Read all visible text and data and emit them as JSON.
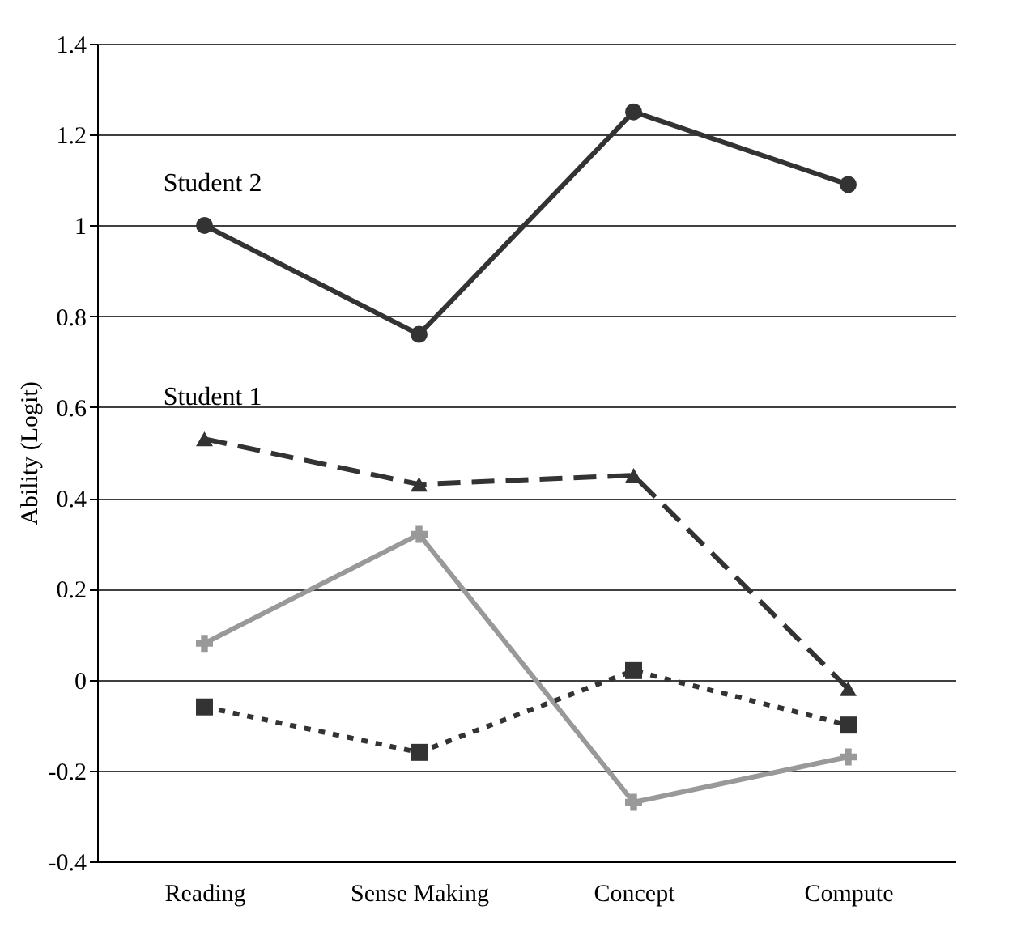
{
  "chart_data": {
    "type": "line",
    "ylabel": "Ability (Logit)",
    "categories": [
      "Reading",
      "Sense Making",
      "Concept",
      "Compute"
    ],
    "series": [
      {
        "name": "Student 2",
        "color": "#333333",
        "marker": "circle",
        "line_style": "solid",
        "values": [
          1.0,
          0.76,
          1.25,
          1.09
        ]
      },
      {
        "name": "Student 1",
        "color": "#333333",
        "marker": "triangle",
        "line_style": "dashed",
        "values": [
          0.53,
          0.43,
          0.45,
          -0.02
        ]
      },
      {
        "color": "#999999",
        "marker": "cross",
        "line_style": "solid",
        "values": [
          0.08,
          0.32,
          -0.27,
          -0.17
        ]
      },
      {
        "color": "#333333",
        "marker": "square",
        "line_style": "dotted",
        "values": [
          -0.06,
          -0.16,
          0.02,
          -0.1
        ]
      }
    ],
    "ylim": [
      -0.4,
      1.4
    ],
    "yticks": [
      -0.4,
      -0.2,
      0,
      0.2,
      0.4,
      0.6,
      0.8,
      1,
      1.2,
      1.4
    ],
    "grid": "y"
  }
}
